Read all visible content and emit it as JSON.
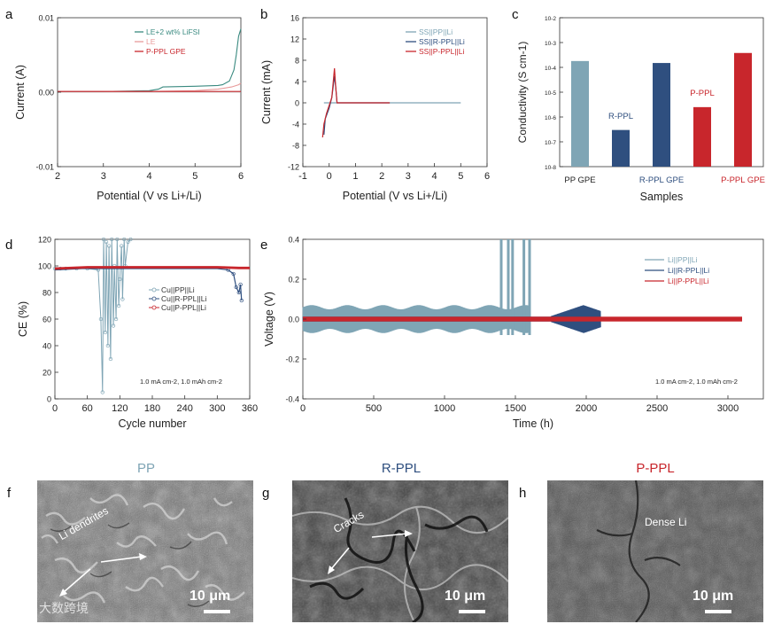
{
  "panel_labels": {
    "a": "a",
    "b": "b",
    "c": "c",
    "d": "d",
    "e": "e",
    "f": "f",
    "g": "g",
    "h": "h"
  },
  "colors": {
    "pp": "#7fa5b5",
    "rppl": "#2f4f7f",
    "pppl": "#c8262c",
    "teal": "#3a8a80",
    "pink": "#e89a9a"
  },
  "chart_data": [
    {
      "id": "a",
      "type": "line",
      "xlabel": "Potential (V vs Li+/Li)",
      "ylabel": "Current (A)",
      "xlim": [
        2,
        6
      ],
      "ylim": [
        -0.01,
        0.01
      ],
      "xticks": [
        2,
        3,
        4,
        5,
        6
      ],
      "xtick_labels": [
        "2",
        "3",
        "4",
        "5",
        "6"
      ],
      "yticks": [
        -0.01,
        0,
        0.01
      ],
      "ytick_labels": [
        "-0.01",
        "0.00",
        "0.01"
      ],
      "series": [
        {
          "name": "LE+2 wt% LiFSI",
          "color": "#3a8a80",
          "x": [
            2,
            3,
            4,
            4.2,
            4.3,
            5,
            5.5,
            5.6,
            5.75,
            5.85,
            5.9,
            5.95,
            6.0
          ],
          "y": [
            0.0001,
            0.0001,
            0.0002,
            0.0004,
            0.0007,
            0.0008,
            0.0009,
            0.001,
            0.0015,
            0.003,
            0.005,
            0.0075,
            0.0085
          ]
        },
        {
          "name": "LE",
          "color": "#e89a9a",
          "x": [
            2,
            3,
            4,
            5,
            5.5,
            5.8,
            5.95,
            6.0
          ],
          "y": [
            0.0001,
            0.0001,
            0.0001,
            0.0002,
            0.0004,
            0.0007,
            0.001,
            0.0012
          ]
        },
        {
          "name": "P-PPL GPE",
          "color": "#c8262c",
          "x": [
            2,
            3,
            4,
            5,
            5.5,
            6.0
          ],
          "y": [
            0.0001,
            0.0001,
            0.0001,
            0.0001,
            0.0001,
            0.0001
          ]
        }
      ]
    },
    {
      "id": "b",
      "type": "line",
      "xlabel": "Potential (V vs Li+/Li)",
      "ylabel": "Current (mA)",
      "xlim": [
        -1,
        6
      ],
      "ylim": [
        -12,
        16
      ],
      "xticks": [
        -1,
        0,
        1,
        2,
        3,
        4,
        5,
        6
      ],
      "xtick_labels": [
        "-1",
        "0",
        "1",
        "2",
        "3",
        "4",
        "5",
        "6"
      ],
      "yticks": [
        -12,
        -8,
        -4,
        0,
        4,
        8,
        12,
        16
      ],
      "ytick_labels": [
        "-12",
        "-8",
        "-4",
        "0",
        "4",
        "8",
        "12",
        "16"
      ],
      "series": [
        {
          "name": "SS||PP||Li",
          "color": "#7fa5b5",
          "x": [
            -0.2,
            0,
            0.2,
            0.5,
            1,
            2,
            3,
            4,
            5
          ],
          "y": [
            0,
            0,
            0,
            0,
            0,
            0,
            0,
            0,
            0
          ]
        },
        {
          "name": "SS||R-PPL||Li",
          "color": "#2f4f7f",
          "x": [
            -0.2,
            -0.15,
            0,
            0.1,
            0.2,
            0.25,
            0.3,
            0.5,
            2.3
          ],
          "y": [
            -6,
            -3,
            -1,
            1,
            5,
            3,
            0,
            0,
            0
          ]
        },
        {
          "name": "SS||P-PPL||Li",
          "color": "#c8262c",
          "x": [
            -0.25,
            -0.2,
            -0.1,
            0,
            0.1,
            0.2,
            0.25,
            0.3,
            0.5,
            2.3
          ],
          "y": [
            -6.5,
            -4,
            -2,
            -0.5,
            1,
            6.5,
            3,
            0,
            0,
            0
          ]
        }
      ]
    },
    {
      "id": "c",
      "type": "bar",
      "xlabel": "Samples",
      "ylabel": "Conductivity (S cm-1)",
      "yscale": "log",
      "ylim_exp": [
        -8,
        -2
      ],
      "ytick_labels": [
        "10-8",
        "10-7",
        "10-6",
        "10-5",
        "10-4",
        "10-3",
        "10-2"
      ],
      "categories": [
        "PP GPE",
        "R-PPL",
        "R-PPL GPE",
        "P-PPL",
        "P-PPL GPE"
      ],
      "values": [
        0.00018,
        3e-07,
        0.00015,
        2.5e-06,
        0.00038
      ],
      "bar_colors": [
        "#7fa5b5",
        "#2f4f7f",
        "#2f4f7f",
        "#c8262c",
        "#c8262c"
      ]
    },
    {
      "id": "d",
      "type": "line",
      "xlabel": "Cycle number",
      "ylabel": "CE (%)",
      "xlim": [
        0,
        360
      ],
      "ylim": [
        0,
        120
      ],
      "xticks": [
        0,
        60,
        120,
        180,
        240,
        300,
        360
      ],
      "xtick_labels": [
        "0",
        "60",
        "120",
        "180",
        "240",
        "300",
        "360"
      ],
      "yticks": [
        0,
        20,
        40,
        60,
        80,
        100,
        120
      ],
      "ytick_labels": [
        "0",
        "20",
        "40",
        "60",
        "80",
        "100",
        "120"
      ],
      "annotation": "1.0 mA cm-2, 1.0 mAh cm-2",
      "series": [
        {
          "name": "Cu||PP||Li",
          "color": "#7fa5b5",
          "x": [
            0,
            10,
            20,
            40,
            60,
            80,
            85,
            88,
            90,
            93,
            95,
            98,
            100,
            103,
            105,
            108,
            110,
            113,
            115,
            118,
            120,
            123,
            125,
            128,
            130,
            135,
            140
          ],
          "y": [
            98,
            98,
            98,
            98,
            98,
            97,
            60,
            5,
            120,
            50,
            118,
            40,
            115,
            30,
            120,
            55,
            100,
            60,
            120,
            70,
            90,
            115,
            75,
            120,
            100,
            118,
            120
          ]
        },
        {
          "name": "Cu||R-PPL||Li",
          "color": "#2f4f7f",
          "x": [
            0,
            50,
            100,
            150,
            200,
            250,
            300,
            320,
            330,
            335,
            340,
            343,
            345
          ],
          "y": [
            97,
            98,
            98,
            98,
            98,
            98,
            98,
            97,
            94,
            84,
            80,
            86,
            74
          ]
        },
        {
          "name": "Cu||P-PPL||Li",
          "color": "#c8262c",
          "x": [
            0,
            60,
            120,
            180,
            240,
            300,
            340,
            360
          ],
          "y": [
            98,
            99,
            99,
            99,
            99,
            99,
            98.5,
            98.5
          ]
        }
      ]
    },
    {
      "id": "e",
      "type": "line",
      "xlabel": "Time (h)",
      "ylabel": "Voltage (V)",
      "xlim": [
        0,
        3250
      ],
      "ylim": [
        -0.4,
        0.4
      ],
      "xticks": [
        0,
        500,
        1000,
        1500,
        2000,
        2500,
        3000
      ],
      "xtick_labels": [
        "0",
        "500",
        "1000",
        "1500",
        "2000",
        "2500",
        "3000"
      ],
      "yticks": [
        -0.4,
        -0.2,
        0,
        0.2,
        0.4
      ],
      "ytick_labels": [
        "-0.4",
        "-0.2",
        "0.0",
        "0.2",
        "0.4"
      ],
      "annotation": "1.0 mA cm-2, 1.0 mAh cm-2",
      "series": [
        {
          "name": "Li||PP||Li",
          "color": "#7fa5b5",
          "x_end": 1600,
          "amplitude": 0.07,
          "spikes": [
            1400,
            1450,
            1480,
            1560,
            1600
          ]
        },
        {
          "name": "Li||R-PPL||Li",
          "color": "#2f4f7f",
          "x_end": 2100,
          "amplitude": 0.012,
          "growth_start": 1750,
          "peak_x": 1980,
          "peak_amp": 0.07
        },
        {
          "name": "Li||P-PPL||Li",
          "color": "#c8262c",
          "x_end": 3100,
          "amplitude": 0.012
        }
      ]
    }
  ],
  "sem": {
    "f": {
      "title": "PP",
      "title_color": "#7fa5b5",
      "annotation": "Li dendrites",
      "scale": "10 μm"
    },
    "g": {
      "title": "R-PPL",
      "title_color": "#2f4f7f",
      "annotation": "Cracks",
      "scale": "10 μm"
    },
    "h": {
      "title": "P-PPL",
      "title_color": "#c8262c",
      "annotation": "Dense Li",
      "scale": "10 μm"
    }
  },
  "watermark": "大数跨境"
}
